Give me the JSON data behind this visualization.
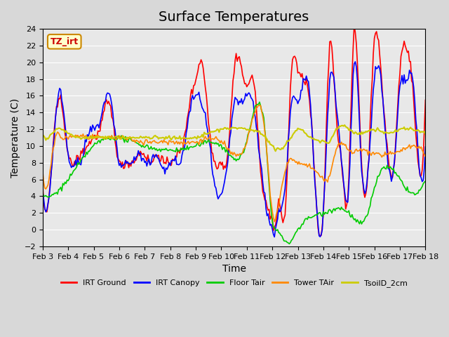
{
  "title": "Surface Temperatures",
  "xlabel": "Time",
  "ylabel": "Temperature (C)",
  "ylim": [
    -2,
    24
  ],
  "xlim": [
    0,
    360
  ],
  "x_tick_labels": [
    "Feb 3",
    "Feb 4",
    "Feb 5",
    "Feb 6",
    "Feb 7",
    "Feb 8",
    "Feb 9",
    "Feb 10",
    "Feb 11",
    "Feb 12",
    "Feb 13",
    "Feb 14",
    "Feb 15",
    "Feb 16",
    "Feb 17",
    "Feb 18"
  ],
  "x_tick_positions": [
    0,
    24,
    48,
    72,
    96,
    120,
    144,
    168,
    192,
    216,
    240,
    264,
    288,
    312,
    336,
    360
  ],
  "y_ticks": [
    -2,
    0,
    2,
    4,
    6,
    8,
    10,
    12,
    14,
    16,
    18,
    20,
    22,
    24
  ],
  "bg_color": "#e8e8e8",
  "plot_bg_color": "#e8e8e8",
  "legend_entries": [
    "IRT Ground",
    "IRT Canopy",
    "Floor Tair",
    "Tower TAir",
    "TsoilD_2cm"
  ],
  "legend_colors": [
    "#ff0000",
    "#0000ff",
    "#00cc00",
    "#ff8800",
    "#cccc00"
  ],
  "tz_label": "TZ_irt",
  "title_fontsize": 14,
  "label_fontsize": 10
}
